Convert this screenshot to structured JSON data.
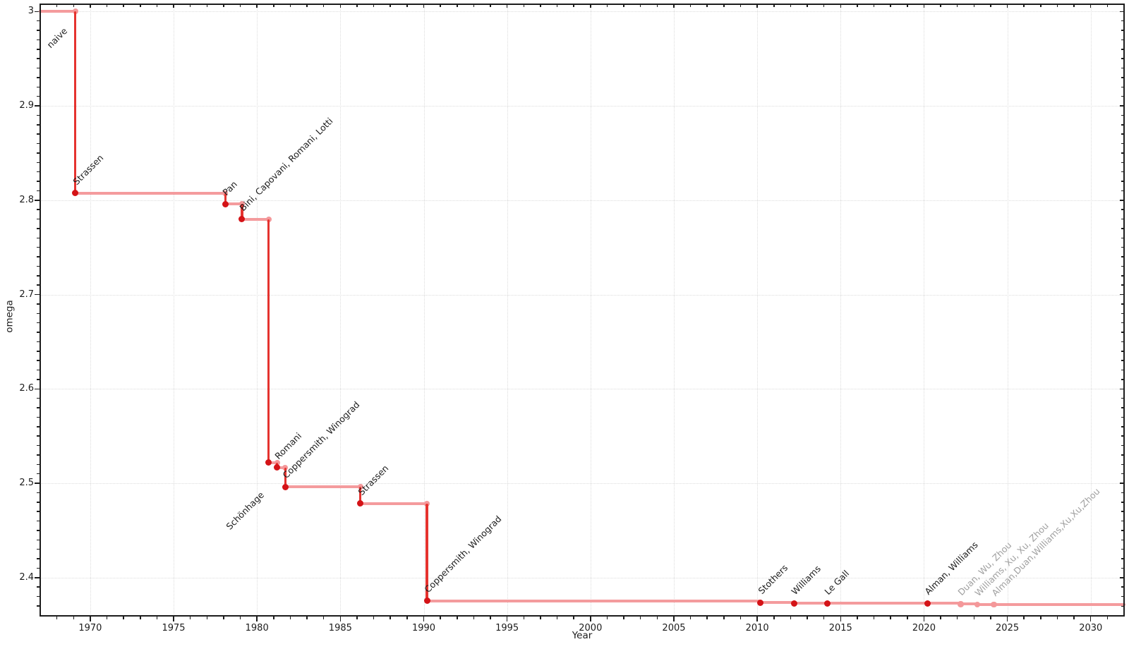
{
  "chart_data": {
    "type": "line",
    "line_style": "step-post",
    "title": "",
    "xlabel": "Year",
    "ylabel": "omega",
    "xlim": [
      1967,
      2032
    ],
    "ylim": [
      2.3595,
      3.0085
    ],
    "x_major_ticks": [
      1970,
      1975,
      1980,
      1985,
      1990,
      1995,
      2000,
      2005,
      2010,
      2015,
      2020,
      2025,
      2030
    ],
    "x_major_tick_labels": [
      "1970",
      "1975",
      "1980",
      "1985",
      "1990",
      "1995",
      "2000",
      "2005",
      "2010",
      "2015",
      "2020",
      "2025",
      "2030"
    ],
    "x_minor_step": 1,
    "y_major_ticks": [
      2.4,
      2.5,
      2.6,
      2.7,
      2.8,
      2.9,
      3
    ],
    "y_major_tick_labels": [
      "2.4",
      "2.5",
      "2.6",
      "2.7",
      "2.8",
      "2.9",
      "3"
    ],
    "y_minor_step": 0.01,
    "grid": "major-dotted",
    "legend": "none",
    "colors": {
      "line_vertical": "#e5332f",
      "line_horizontal": "#f49b9d",
      "marker_dark": "#d41317",
      "marker_light": "#f4989a",
      "label_black": "#1c1c1c",
      "label_gray": "#a0a0a0",
      "axis": "#1c1c1c",
      "grid": "#dcdcdc"
    },
    "points": [
      {
        "year": 1967.0,
        "omega": 3.0,
        "label": "naive",
        "label_color": "black",
        "marker": "none"
      },
      {
        "year": 1969.1,
        "omega": 2.8074,
        "label": "Strassen",
        "label_color": "black",
        "marker": "dark"
      },
      {
        "year": 1978.1,
        "omega": 2.796,
        "label": "Pan",
        "label_color": "black",
        "marker": "dark"
      },
      {
        "year": 1979.1,
        "omega": 2.7799,
        "label": "Bini, Capovani, Romani, Lotti",
        "label_color": "black",
        "marker": "dark"
      },
      {
        "year": 1980.7,
        "omega": 2.522,
        "label": "Schönhage",
        "label_color": "black",
        "marker": "dark"
      },
      {
        "year": 1981.2,
        "omega": 2.5166,
        "label": "Romani",
        "label_color": "black",
        "marker": "dark"
      },
      {
        "year": 1981.7,
        "omega": 2.496,
        "label": "Coppersmith, Winograd",
        "label_color": "black",
        "marker": "dark"
      },
      {
        "year": 1986.2,
        "omega": 2.4785,
        "label": "Strassen",
        "label_color": "black",
        "marker": "dark"
      },
      {
        "year": 1990.2,
        "omega": 2.3755,
        "label": "Coppersmith, Winograd",
        "label_color": "black",
        "marker": "dark"
      },
      {
        "year": 2010.2,
        "omega": 2.3737,
        "label": "Stothers",
        "label_color": "black",
        "marker": "dark"
      },
      {
        "year": 2012.2,
        "omega": 2.3729,
        "label": "Williams",
        "label_color": "black",
        "marker": "dark"
      },
      {
        "year": 2014.2,
        "omega": 2.3728639,
        "label": "Le Gall",
        "label_color": "black",
        "marker": "dark"
      },
      {
        "year": 2020.2,
        "omega": 2.3728596,
        "label": "Alman, Williams",
        "label_color": "black",
        "marker": "dark"
      },
      {
        "year": 2022.2,
        "omega": 2.371866,
        "label": "Duan, Wu, Zhou",
        "label_color": "gray",
        "marker": "light"
      },
      {
        "year": 2023.2,
        "omega": 2.371552,
        "label": "Williams, Xu, Xu, Zhou",
        "label_color": "gray",
        "marker": "light"
      },
      {
        "year": 2024.2,
        "omega": 2.371339,
        "label": "Alman,Duan,Williams,Xu,Xu,Zhou",
        "label_color": "gray",
        "marker": "light"
      }
    ]
  }
}
